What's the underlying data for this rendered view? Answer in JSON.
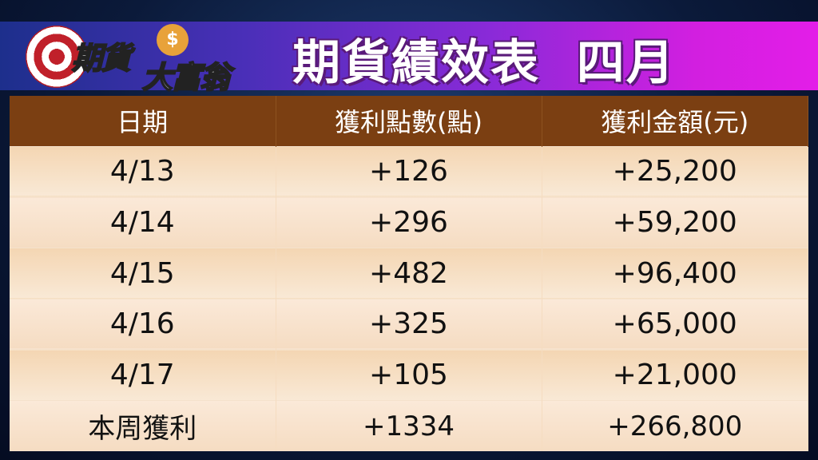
{
  "logo": {
    "text_line1": "期貨",
    "text_line2": "大富翁",
    "coin_symbol": "$"
  },
  "title": "期貨績效表  四月",
  "colors": {
    "header_bg": "#7b3f12",
    "banner_start": "#1d2f8c",
    "banner_end": "#e31ee8",
    "row_bg": "#f6dfc4"
  },
  "table": {
    "headers": [
      "日期",
      "獲利點數(點)",
      "獲利金額(元)"
    ],
    "rows": [
      [
        "4/13",
        "+126",
        "+25,200"
      ],
      [
        "4/14",
        "+296",
        "+59,200"
      ],
      [
        "4/15",
        "+482",
        "+96,400"
      ],
      [
        "4/16",
        "+325",
        "+65,000"
      ],
      [
        "4/17",
        "+105",
        "+21,000"
      ],
      [
        "本周獲利",
        "+1334",
        "+266,800"
      ]
    ]
  }
}
